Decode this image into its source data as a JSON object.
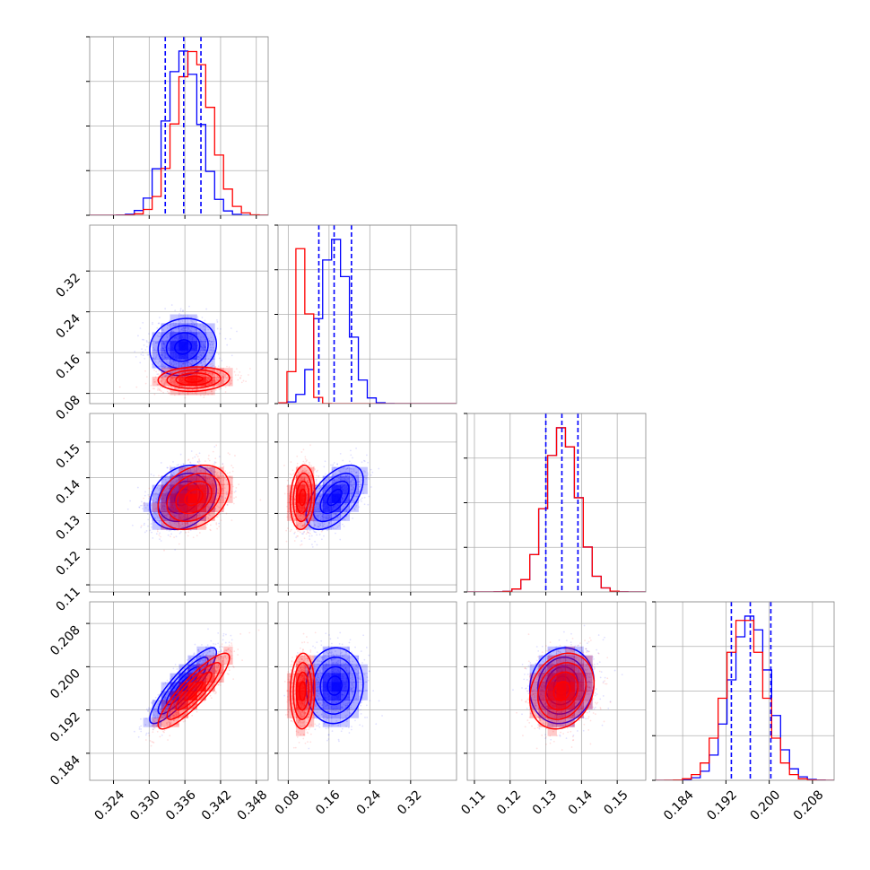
{
  "chart_data": {
    "type": "corner",
    "parameters": [
      {
        "index": 0,
        "range": [
          0.32,
          0.35
        ],
        "ticks": [
          0.324,
          0.33,
          0.336,
          0.342,
          0.348
        ],
        "tick_labels": [
          "0.324",
          "0.330",
          "0.336",
          "0.342",
          "0.348"
        ]
      },
      {
        "index": 1,
        "range": [
          0.06,
          0.41
        ],
        "ticks": [
          0.08,
          0.16,
          0.24,
          0.32
        ],
        "tick_labels": [
          "0.08",
          "0.16",
          "0.24",
          "0.32"
        ]
      },
      {
        "index": 2,
        "range": [
          0.108,
          0.158
        ],
        "ticks": [
          0.11,
          0.12,
          0.13,
          0.14,
          0.15
        ],
        "tick_labels": [
          "0.11",
          "0.12",
          "0.13",
          "0.14",
          "0.15"
        ]
      },
      {
        "index": 3,
        "range": [
          0.179,
          0.212
        ],
        "ticks": [
          0.184,
          0.192,
          0.2,
          0.208
        ],
        "tick_labels": [
          "0.184",
          "0.192",
          "0.200",
          "0.208"
        ]
      }
    ],
    "series": [
      {
        "color": "#0000ff",
        "means": [
          0.3357,
          0.171,
          0.1345,
          0.1965
        ],
        "sigmas": [
          0.0028,
          0.028,
          0.0045,
          0.0035
        ],
        "quantiles": [
          [
            0.3327,
            0.3358,
            0.3387
          ],
          [
            0.14,
            0.17,
            0.204
          ],
          [
            0.13,
            0.1345,
            0.139
          ],
          [
            0.193,
            0.1965,
            0.2003
          ]
        ],
        "correlations": {
          "1-0": 0.1,
          "2-0": 0.25,
          "2-1": 0.55,
          "3-0": 0.88,
          "3-1": 0.05,
          "3-2": 0.1
        }
      },
      {
        "color": "#ff0000",
        "means": [
          0.3375,
          0.108,
          0.1345,
          0.1955
        ],
        "sigmas": [
          0.003,
          0.012,
          0.0045,
          0.0035
        ],
        "quantiles": null,
        "correlations": {
          "1-0": 0.1,
          "2-0": 0.3,
          "2-1": 0.15,
          "3-0": 0.88,
          "3-1": 0.05,
          "3-2": 0.2
        }
      }
    ],
    "grid": true,
    "diagonal": "step-histogram",
    "off_diagonal": "density-contours-with-scatter"
  }
}
